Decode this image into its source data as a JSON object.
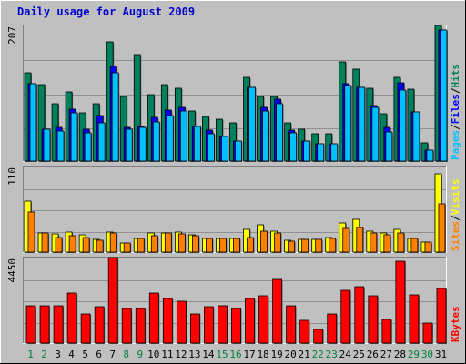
{
  "title": "Daily usage for August 2009",
  "colors": {
    "background": "#C0C0C0",
    "title": "#0000CC",
    "hits": "#00805C",
    "files": "#0000FF",
    "pages": "#00C0FF",
    "visits": "#FFFF00",
    "sites": "#FF8000",
    "kbytes": "#FF0000",
    "weekend_label": "#008040",
    "weekday_label": "#000000",
    "gridline": "#909090"
  },
  "chart_data": [
    {
      "type": "bar",
      "panel": "top",
      "ymax_label": "207",
      "ylim": [
        0,
        207
      ],
      "label_parts": [
        "Pages",
        "/",
        "Files",
        "/",
        "Hits"
      ],
      "categories": [
        "1",
        "2",
        "3",
        "4",
        "5",
        "6",
        "7",
        "8",
        "9",
        "10",
        "11",
        "12",
        "13",
        "14",
        "15",
        "16",
        "17",
        "18",
        "19",
        "20",
        "21",
        "22",
        "23",
        "24",
        "25",
        "26",
        "27",
        "28",
        "29",
        "30",
        "31"
      ],
      "weekend": [
        1,
        2,
        8,
        9,
        15,
        16,
        22,
        23,
        29,
        30
      ],
      "series": [
        {
          "name": "Hits",
          "values": [
            135,
            117,
            87,
            105,
            74,
            88,
            182,
            98,
            162,
            102,
            117,
            111,
            77,
            68,
            64,
            59,
            128,
            99,
            99,
            58,
            48,
            41,
            42,
            151,
            141,
            111,
            72,
            128,
            110,
            28,
            207
          ]
        },
        {
          "name": "Files",
          "values": [
            118,
            49,
            52,
            79,
            48,
            70,
            145,
            51,
            53,
            66,
            78,
            82,
            53,
            47,
            37,
            31,
            113,
            82,
            95,
            47,
            31,
            26,
            27,
            118,
            112,
            85,
            51,
            119,
            75,
            16,
            200
          ]
        },
        {
          "name": "Pages",
          "values": [
            118,
            49,
            46,
            73,
            43,
            58,
            135,
            48,
            52,
            60,
            70,
            77,
            53,
            42,
            37,
            31,
            113,
            76,
            88,
            43,
            31,
            26,
            27,
            116,
            112,
            82,
            44,
            108,
            75,
            16,
            200
          ]
        }
      ]
    },
    {
      "type": "bar",
      "panel": "middle",
      "ymax_label": "110",
      "ylim": [
        0,
        110
      ],
      "label_parts": [
        "Sites",
        "/",
        "Visits"
      ],
      "categories": [
        "1",
        "2",
        "3",
        "4",
        "5",
        "6",
        "7",
        "8",
        "9",
        "10",
        "11",
        "12",
        "13",
        "14",
        "15",
        "16",
        "17",
        "18",
        "19",
        "20",
        "21",
        "22",
        "23",
        "24",
        "25",
        "26",
        "27",
        "28",
        "29",
        "30",
        "31"
      ],
      "series": [
        {
          "name": "Visits",
          "values": [
            66,
            24,
            23,
            26,
            22,
            16,
            26,
            12,
            18,
            25,
            25,
            26,
            22,
            18,
            17,
            17,
            29,
            35,
            27,
            15,
            16,
            16,
            19,
            37,
            42,
            27,
            24,
            29,
            18,
            13,
            101
          ]
        },
        {
          "name": "Sites",
          "values": [
            51,
            24,
            19,
            21,
            19,
            15,
            24,
            12,
            18,
            21,
            24,
            23,
            21,
            17,
            17,
            17,
            19,
            27,
            24,
            14,
            16,
            16,
            17,
            31,
            32,
            25,
            22,
            24,
            17,
            13,
            62
          ]
        }
      ]
    },
    {
      "type": "bar",
      "panel": "bottom",
      "ymax_label": "4450",
      "ylim": [
        0,
        4450
      ],
      "label_parts": [
        "KBytes"
      ],
      "categories": [
        "1",
        "2",
        "3",
        "4",
        "5",
        "6",
        "7",
        "8",
        "9",
        "10",
        "11",
        "12",
        "13",
        "14",
        "15",
        "16",
        "17",
        "18",
        "19",
        "20",
        "21",
        "22",
        "23",
        "24",
        "25",
        "26",
        "27",
        "28",
        "29",
        "30",
        "31"
      ],
      "series": [
        {
          "name": "KBytes",
          "values": [
            1950,
            1950,
            1950,
            2600,
            1520,
            1880,
            4450,
            1780,
            1780,
            2600,
            2300,
            2200,
            1500,
            1880,
            1950,
            1780,
            2300,
            2450,
            3300,
            1950,
            1180,
            700,
            1520,
            2740,
            2950,
            2450,
            1220,
            4260,
            2500,
            1050,
            2840
          ]
        }
      ]
    }
  ]
}
